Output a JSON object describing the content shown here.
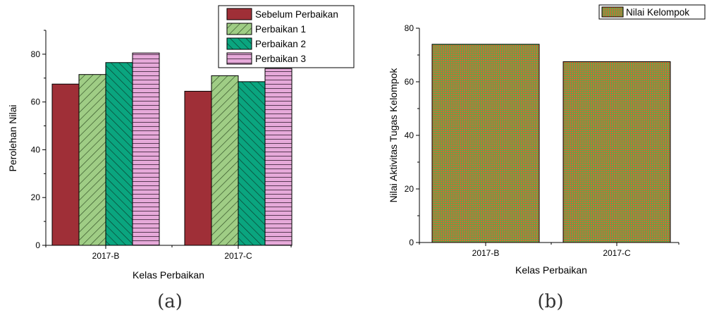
{
  "chart_data": [
    {
      "type": "bar",
      "caption": "(a)",
      "xlabel": "Kelas Perbaikan",
      "ylabel": "Perolehan Nilai",
      "ylim": [
        0,
        90
      ],
      "yticks": [
        0,
        20,
        40,
        60,
        80
      ],
      "categories": [
        "2017-B",
        "2017-C"
      ],
      "legend_position": "top-right",
      "series": [
        {
          "name": "Sebelum Perbaikan",
          "values": [
            67.5,
            64.5
          ],
          "color": "#9f2f37",
          "pattern": "solid"
        },
        {
          "name": "Perbaikan 1",
          "values": [
            71.5,
            71.0
          ],
          "color": "#9fcd85",
          "pattern": "diagonal-right"
        },
        {
          "name": "Perbaikan 2",
          "values": [
            76.5,
            68.5
          ],
          "color": "#0aa57f",
          "pattern": "diagonal-left"
        },
        {
          "name": "Perbaikan 3",
          "values": [
            80.5,
            74.0
          ],
          "color": "#e6a9d9",
          "pattern": "horizontal"
        }
      ]
    },
    {
      "type": "bar",
      "caption": "(b)",
      "xlabel": "Kelas Perbaikan",
      "ylabel": "Nilai Aktivitas Tugas Kelompok",
      "ylim": [
        0,
        80
      ],
      "yticks": [
        0,
        20,
        40,
        60,
        80
      ],
      "categories": [
        "2017-B",
        "2017-C"
      ],
      "legend_position": "top-right",
      "series": [
        {
          "name": "Nilai Kelompok",
          "values": [
            74.0,
            67.5
          ],
          "color": "#c8783a",
          "pattern": "grid-green"
        }
      ]
    }
  ]
}
